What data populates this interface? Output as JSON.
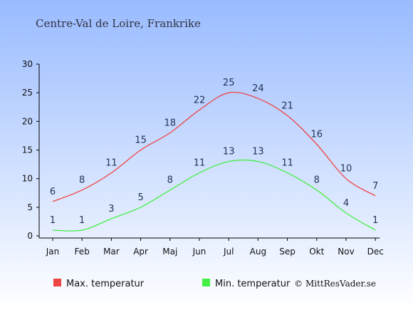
{
  "chart_data": {
    "type": "line",
    "title": "Centre-Val de Loire, Frankrike",
    "xlabel": "",
    "ylabel": "",
    "categories": [
      "Jan",
      "Feb",
      "Mar",
      "Apr",
      "Maj",
      "Jun",
      "Jul",
      "Aug",
      "Sep",
      "Okt",
      "Nov",
      "Dec"
    ],
    "ylim": [
      0,
      30
    ],
    "yticks": [
      0,
      5,
      10,
      15,
      20,
      25,
      30
    ],
    "grid": false,
    "legend_position": "bottom-left",
    "series": [
      {
        "name": "Max. temperatur",
        "color": "#ee4444",
        "values": [
          6,
          8,
          11,
          15,
          18,
          22,
          25,
          24,
          21,
          16,
          10,
          7
        ]
      },
      {
        "name": "Min. temperatur",
        "color": "#44ee44",
        "values": [
          1,
          1,
          3,
          5,
          8,
          11,
          13,
          13,
          11,
          8,
          4,
          1
        ]
      }
    ]
  },
  "credit": "© MittResVader.se",
  "colors": {
    "background_top": "#99bbff",
    "background_bottom": "#ffffff",
    "axis": "#000000"
  }
}
